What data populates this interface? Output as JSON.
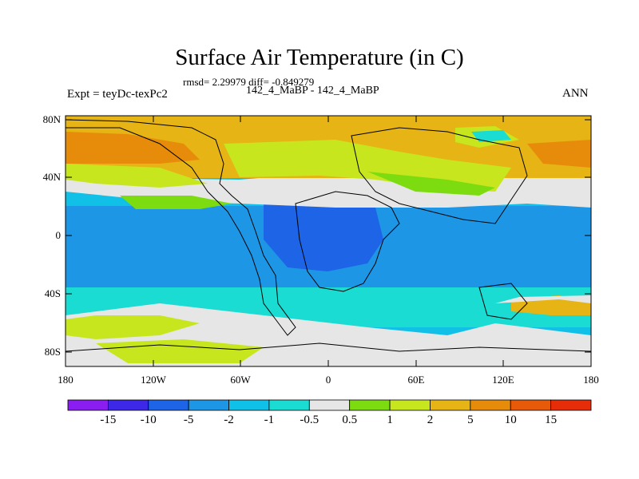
{
  "title": "Surface Air Temperature (in C)",
  "stats_line": "rmsd= 2.29979 diff= -0.849279",
  "experiment_label": "Expt = teyDc-texPc2",
  "runs_label": "142_4_MaBP - 142_4_MaBP",
  "season_label": "ANN",
  "y_axis": {
    "ticks": [
      "80N",
      "40N",
      "0",
      "40S",
      "80S"
    ]
  },
  "x_axis": {
    "ticks": [
      "180",
      "120W",
      "60W",
      "0",
      "60E",
      "120E",
      "180"
    ]
  },
  "colorbar": {
    "colors": [
      "#8a1ef0",
      "#3c28e6",
      "#1e64e6",
      "#1e96e6",
      "#10c0e6",
      "#1adcd2",
      "#e6e6e6",
      "#7ddc10",
      "#c8e61e",
      "#e6b414",
      "#e68c0a",
      "#e65a0a",
      "#e62d0a"
    ],
    "labels": [
      "-15",
      "-10",
      "-5",
      "-2",
      "-1",
      "-0.5",
      "0.5",
      "1",
      "2",
      "5",
      "10",
      "15"
    ]
  }
}
